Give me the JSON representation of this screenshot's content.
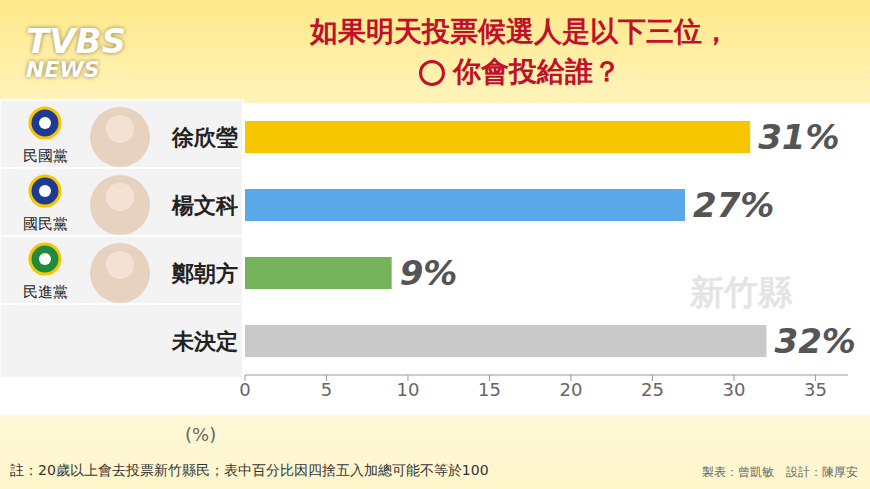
{
  "header": {
    "logo": [
      "TVBS",
      "NEWS"
    ]
  },
  "chart_data": {
    "type": "bar",
    "orientation": "horizontal",
    "title": [
      "如果明天投票候選人是以下三位，",
      "你會投給誰？"
    ],
    "categories": [
      "徐欣瑩",
      "楊文科",
      "鄭朝方",
      "未決定"
    ],
    "parties": [
      "民國黨",
      "國民黨",
      "民進黨",
      null
    ],
    "values": [
      31,
      27,
      9,
      32
    ],
    "value_labels": [
      "31%",
      "27%",
      "9%",
      "32%"
    ],
    "colors": [
      "#F7C600",
      "#5BA8E8",
      "#74B35A",
      "#C9C9C9"
    ],
    "data_labels": true,
    "xlabel": "(%)",
    "xlim": [
      0,
      37
    ],
    "xticks": [
      0,
      5,
      10,
      15,
      20,
      25,
      30,
      35
    ],
    "map_label": "新竹縣"
  },
  "footer": {
    "note": "註：20歲以上會去投票新竹縣民；表中百分比因四捨五入加總可能不等於100",
    "credits": [
      "製表：曾凱敏",
      "設計：陳厚安"
    ]
  }
}
